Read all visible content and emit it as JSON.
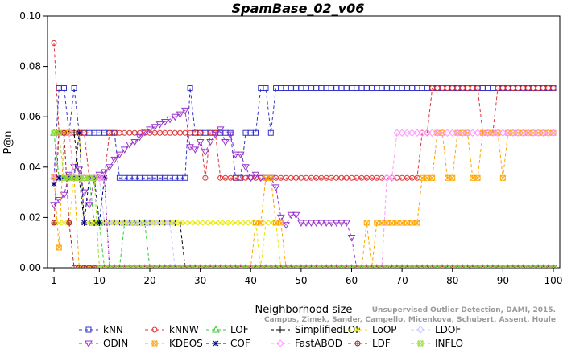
{
  "chart_data": {
    "type": "line",
    "title": "SpamBase_02_v06",
    "xlabel": "Neighborhood size",
    "ylabel": "P@n",
    "xlim": [
      1,
      100
    ],
    "ylim": [
      0,
      0.1
    ],
    "xticks": [
      "1",
      "10",
      "20",
      "30",
      "40",
      "50",
      "60",
      "70",
      "80",
      "90",
      "100"
    ],
    "yticks": [
      "0.00",
      "0.02",
      "0.04",
      "0.06",
      "0.08",
      "0.10"
    ],
    "grid": false,
    "legend_position": "bottom",
    "attribution": "Campos, Zimek, Sander, Campello, Micenkova, Schubert, Assent, Houle",
    "attribution_line1": "Unsupervised Outlier Detection, DAMI, 2015.",
    "series": [
      {
        "name": "kNN",
        "color": "#3333cc",
        "marker": "square",
        "points": [
          [
            1,
            0.036
          ],
          [
            2,
            0.0714
          ],
          [
            3,
            0.0714
          ],
          [
            4,
            0.0536
          ],
          [
            5,
            0.0714
          ],
          [
            6,
            0.0536
          ],
          [
            13,
            0.0536
          ],
          [
            14,
            0.0357
          ],
          [
            27,
            0.0357
          ],
          [
            28,
            0.0714
          ],
          [
            29,
            0.0536
          ],
          [
            36,
            0.0536
          ],
          [
            37,
            0.0357
          ],
          [
            38,
            0.0357
          ],
          [
            39,
            0.0536
          ],
          [
            41,
            0.0536
          ],
          [
            42,
            0.0714
          ],
          [
            43,
            0.0714
          ],
          [
            44,
            0.0536
          ],
          [
            45,
            0.0714
          ],
          [
            100,
            0.0714
          ]
        ]
      },
      {
        "name": "kNNW",
        "color": "#dd3333",
        "marker": "circle",
        "points": [
          [
            1,
            0.0893
          ],
          [
            2,
            0.0536
          ],
          [
            7,
            0.0536
          ],
          [
            8,
            0.0357
          ],
          [
            11,
            0.0357
          ],
          [
            12,
            0.0536
          ],
          [
            30,
            0.0536
          ],
          [
            31,
            0.0357
          ],
          [
            32,
            0.0536
          ],
          [
            33,
            0.0536
          ],
          [
            34,
            0.0357
          ],
          [
            73,
            0.0357
          ],
          [
            74,
            0.0536
          ],
          [
            75,
            0.0536
          ],
          [
            76,
            0.0714
          ],
          [
            85,
            0.0714
          ],
          [
            86,
            0.0536
          ],
          [
            88,
            0.0536
          ],
          [
            89,
            0.0714
          ],
          [
            100,
            0.0714
          ]
        ]
      },
      {
        "name": "LOF",
        "color": "#33cc33",
        "marker": "triangle-up",
        "points": [
          [
            1,
            0.0536
          ],
          [
            2,
            0.0357
          ],
          [
            8,
            0.0357
          ],
          [
            9,
            0.0179
          ],
          [
            10,
            0.0179
          ],
          [
            11,
            0.0
          ],
          [
            14,
            0.0
          ],
          [
            15,
            0.0179
          ],
          [
            19,
            0.0179
          ],
          [
            20,
            0.0
          ],
          [
            100,
            0.0
          ]
        ]
      },
      {
        "name": "SimplifiedLOF",
        "color": "#000000",
        "marker": "plus",
        "points": [
          [
            1,
            0.0357
          ],
          [
            2,
            0.0536
          ],
          [
            5,
            0.0536
          ],
          [
            6,
            0.0357
          ],
          [
            7,
            0.0179
          ],
          [
            26,
            0.0179
          ],
          [
            27,
            0.0
          ],
          [
            100,
            0.0
          ]
        ]
      },
      {
        "name": "LoOP",
        "color": "#e8e800",
        "marker": "x",
        "points": [
          [
            1,
            0.0179
          ],
          [
            4,
            0.0179
          ],
          [
            5,
            0.0357
          ],
          [
            6,
            0.0536
          ],
          [
            7,
            0.0179
          ],
          [
            41,
            0.0179
          ],
          [
            42,
            0.0
          ],
          [
            43,
            0.0179
          ],
          [
            45,
            0.0179
          ],
          [
            46,
            0.0
          ],
          [
            100,
            0.0
          ]
        ]
      },
      {
        "name": "LDOF",
        "color": "#ccccff",
        "marker": "diamond",
        "points": [
          [
            1,
            0.0357
          ],
          [
            10,
            0.0357
          ],
          [
            11,
            0.0179
          ],
          [
            24,
            0.0179
          ],
          [
            25,
            0.0
          ],
          [
            100,
            0.0
          ]
        ]
      },
      {
        "name": "ODIN",
        "color": "#9933cc",
        "marker": "triangle-down",
        "points": [
          [
            1,
            0.025
          ],
          [
            2,
            0.027
          ],
          [
            3,
            0.029
          ],
          [
            4,
            0.037
          ],
          [
            5,
            0.04
          ],
          [
            6,
            0.039
          ],
          [
            7,
            0.03
          ],
          [
            8,
            0.025
          ],
          [
            9,
            0.035
          ],
          [
            10,
            0.037
          ],
          [
            11,
            0.038
          ],
          [
            12,
            0.04
          ],
          [
            13,
            0.043
          ],
          [
            14,
            0.045
          ],
          [
            15,
            0.047
          ],
          [
            16,
            0.049
          ],
          [
            17,
            0.05
          ],
          [
            18,
            0.052
          ],
          [
            19,
            0.054
          ],
          [
            20,
            0.055
          ],
          [
            21,
            0.056
          ],
          [
            22,
            0.057
          ],
          [
            23,
            0.058
          ],
          [
            24,
            0.059
          ],
          [
            25,
            0.06
          ],
          [
            26,
            0.061
          ],
          [
            27,
            0.0625
          ],
          [
            28,
            0.048
          ],
          [
            29,
            0.047
          ],
          [
            30,
            0.05
          ],
          [
            31,
            0.046
          ],
          [
            32,
            0.05
          ],
          [
            33,
            0.053
          ],
          [
            34,
            0.055
          ],
          [
            35,
            0.05
          ],
          [
            36,
            0.053
          ],
          [
            37,
            0.045
          ],
          [
            38,
            0.045
          ],
          [
            39,
            0.04
          ],
          [
            40,
            0.0357
          ],
          [
            41,
            0.037
          ],
          [
            42,
            0.0357
          ],
          [
            43,
            0.0357
          ],
          [
            44,
            0.0357
          ],
          [
            45,
            0.032
          ],
          [
            46,
            0.02
          ],
          [
            47,
            0.017
          ],
          [
            48,
            0.021
          ],
          [
            49,
            0.021
          ],
          [
            50,
            0.0179
          ],
          [
            51,
            0.0179
          ],
          [
            58,
            0.0179
          ],
          [
            59,
            0.0179
          ],
          [
            60,
            0.012
          ],
          [
            61,
            0.0
          ],
          [
            100,
            0.0
          ]
        ]
      },
      {
        "name": "KDEOS",
        "color": "#ffa500",
        "marker": "square-x",
        "points": [
          [
            1,
            0.036
          ],
          [
            2,
            0.008
          ],
          [
            3,
            0.0536
          ],
          [
            4,
            0.0536
          ],
          [
            5,
            0.0357
          ],
          [
            6,
            0.0
          ],
          [
            7,
            0.0
          ],
          [
            40,
            0.0
          ],
          [
            41,
            0.0179
          ],
          [
            42,
            0.0179
          ],
          [
            43,
            0.0357
          ],
          [
            44,
            0.0357
          ],
          [
            45,
            0.0179
          ],
          [
            46,
            0.0179
          ],
          [
            47,
            0.0
          ],
          [
            62,
            0.0
          ],
          [
            63,
            0.0179
          ],
          [
            64,
            0.0
          ],
          [
            65,
            0.0179
          ],
          [
            73,
            0.0179
          ],
          [
            74,
            0.0357
          ],
          [
            76,
            0.0357
          ],
          [
            77,
            0.0536
          ],
          [
            78,
            0.0536
          ],
          [
            79,
            0.0357
          ],
          [
            80,
            0.0357
          ],
          [
            81,
            0.0536
          ],
          [
            83,
            0.0536
          ],
          [
            84,
            0.0357
          ],
          [
            85,
            0.0357
          ],
          [
            86,
            0.0536
          ],
          [
            89,
            0.0536
          ],
          [
            90,
            0.0357
          ],
          [
            91,
            0.0536
          ],
          [
            100,
            0.0536
          ]
        ]
      },
      {
        "name": "COF",
        "color": "#000080",
        "marker": "asterisk",
        "points": [
          [
            1,
            0.0333
          ],
          [
            2,
            0.0357
          ],
          [
            5,
            0.0357
          ],
          [
            6,
            0.0536
          ],
          [
            7,
            0.0179
          ],
          [
            8,
            0.0357
          ],
          [
            9,
            0.0357
          ],
          [
            10,
            0.0179
          ],
          [
            11,
            0.0357
          ],
          [
            12,
            0.0
          ],
          [
            100,
            0.0
          ]
        ]
      },
      {
        "name": "FastABOD",
        "color": "#ff99ff",
        "marker": "diamond",
        "points": [
          [
            1,
            0.0357
          ],
          [
            2,
            0.0536
          ],
          [
            4,
            0.0536
          ],
          [
            5,
            0.0357
          ],
          [
            11,
            0.0357
          ],
          [
            12,
            0.0
          ],
          [
            66,
            0.0
          ],
          [
            67,
            0.0357
          ],
          [
            68,
            0.0357
          ],
          [
            69,
            0.0536
          ],
          [
            100,
            0.0536
          ]
        ]
      },
      {
        "name": "LDF",
        "color": "#aa2222",
        "marker": "circle-plus",
        "points": [
          [
            1,
            0.0179
          ],
          [
            2,
            0.0536
          ],
          [
            3,
            0.0536
          ],
          [
            4,
            0.0179
          ],
          [
            5,
            0.0
          ],
          [
            100,
            0.0
          ]
        ]
      },
      {
        "name": "INFLO",
        "color": "#99dd33",
        "marker": "square-x",
        "points": [
          [
            1,
            0.0536
          ],
          [
            2,
            0.0536
          ],
          [
            3,
            0.0357
          ],
          [
            9,
            0.0357
          ],
          [
            10,
            0.0
          ],
          [
            100,
            0.0
          ]
        ]
      }
    ],
    "legend": [
      [
        "kNN",
        "kNNW",
        "LOF",
        "SimplifiedLOF",
        "LoOP",
        "LDOF"
      ],
      [
        "ODIN",
        "KDEOS",
        "COF",
        "FastABOD",
        "LDF",
        "INFLO"
      ]
    ]
  }
}
